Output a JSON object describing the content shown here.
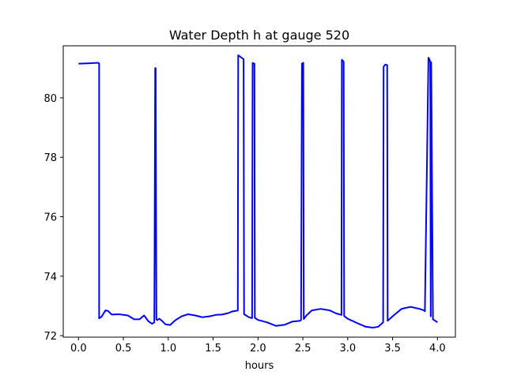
{
  "chart_data": {
    "type": "line",
    "title": "Water Depth h at gauge 520",
    "xlabel": "hours",
    "ylabel": "",
    "xlim": [
      -0.17,
      4.2
    ],
    "ylim": [
      71.95,
      81.75
    ],
    "xticks": [
      0.0,
      0.5,
      1.0,
      1.5,
      2.0,
      2.5,
      3.0,
      3.5,
      4.0
    ],
    "xtick_labels": [
      "0.0",
      "0.5",
      "1.0",
      "1.5",
      "2.0",
      "2.5",
      "3.0",
      "3.5",
      "4.0"
    ],
    "yticks": [
      72,
      74,
      76,
      78,
      80
    ],
    "ytick_labels": [
      "72",
      "74",
      "76",
      "78",
      "80"
    ],
    "grid": false,
    "series": [
      {
        "color": "#0000ff",
        "x": [
          0.0,
          0.1,
          0.22,
          0.23,
          0.23,
          0.26,
          0.3,
          0.33,
          0.37,
          0.45,
          0.55,
          0.62,
          0.68,
          0.73,
          0.78,
          0.82,
          0.845,
          0.855,
          0.86,
          0.868,
          0.878,
          0.9,
          0.93,
          0.97,
          1.02,
          1.08,
          1.15,
          1.22,
          1.3,
          1.38,
          1.46,
          1.53,
          1.6,
          1.67,
          1.72,
          1.765,
          1.775,
          1.78,
          1.84,
          1.845,
          1.9,
          1.935,
          1.94,
          1.96,
          1.965,
          2.0,
          2.1,
          2.2,
          2.3,
          2.38,
          2.47,
          2.48,
          2.49,
          2.505,
          2.51,
          2.54,
          2.6,
          2.7,
          2.8,
          2.87,
          2.93,
          2.935,
          2.945,
          2.955,
          2.96,
          3.0,
          3.1,
          3.2,
          3.28,
          3.34,
          3.395,
          3.4,
          3.42,
          3.44,
          3.445,
          3.5,
          3.6,
          3.7,
          3.8,
          3.85,
          3.86,
          3.9,
          3.91,
          3.92,
          3.925,
          3.93,
          3.95,
          4.0
        ],
        "y": [
          81.15,
          81.16,
          81.18,
          81.15,
          72.58,
          72.65,
          72.85,
          72.83,
          72.71,
          72.72,
          72.68,
          72.55,
          72.55,
          72.68,
          72.48,
          72.4,
          72.45,
          81.0,
          81.0,
          72.55,
          72.52,
          72.57,
          72.5,
          72.38,
          72.36,
          72.52,
          72.65,
          72.72,
          72.68,
          72.62,
          72.65,
          72.7,
          72.71,
          72.76,
          72.82,
          72.84,
          72.85,
          81.43,
          81.3,
          72.72,
          72.62,
          72.59,
          81.17,
          81.15,
          72.6,
          72.53,
          72.45,
          72.33,
          72.37,
          72.47,
          72.5,
          72.53,
          81.15,
          81.18,
          72.56,
          72.68,
          72.85,
          72.9,
          72.85,
          72.75,
          72.7,
          81.28,
          81.25,
          81.2,
          72.66,
          72.57,
          72.43,
          72.3,
          72.27,
          72.3,
          72.45,
          81.05,
          81.12,
          81.1,
          72.5,
          72.65,
          72.9,
          72.97,
          72.9,
          72.85,
          72.82,
          81.35,
          81.3,
          81.2,
          72.65,
          81.2,
          72.55,
          72.45
        ]
      }
    ]
  }
}
